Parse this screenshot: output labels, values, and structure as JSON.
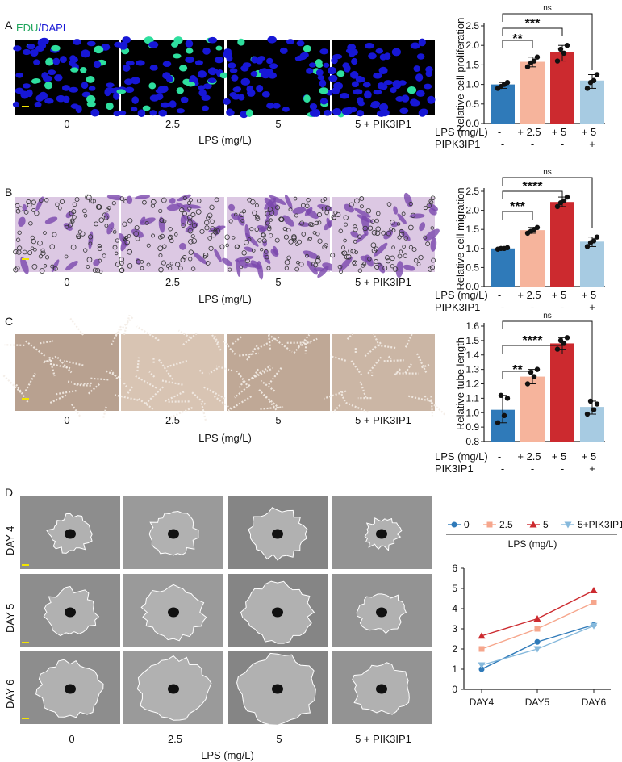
{
  "panel_labels": [
    "A",
    "B",
    "C",
    "D"
  ],
  "edu_label": {
    "edu": "EDU",
    "sep": "/",
    "dapi": "DAPI"
  },
  "conditions": [
    "0",
    "2.5",
    "5",
    "5 + PIK3IP1"
  ],
  "lps_axis": "LPS (mg/L)",
  "day_labels": [
    "DAY 4",
    "DAY 5",
    "DAY 6"
  ],
  "colors": {
    "c0": "#2f7ab9",
    "c25": "#f6b49c",
    "c5": "#cc2a2f",
    "cpik": "#a7cbe2",
    "dapi": "#1717d6",
    "edu": "#2edf9e",
    "crystal": "#7b47ad",
    "tube_bg": "#c7b3a4",
    "spheroid_bg": "#8a8a8a"
  },
  "chart_data": [
    {
      "type": "bar",
      "ylabel": "Relative cell proliferation",
      "ylim": [
        0,
        2.5
      ],
      "yticks": [
        "0.0",
        "0.5",
        "1.0",
        "1.5",
        "2.0",
        "2.5"
      ],
      "values": [
        1.0,
        1.58,
        1.83,
        1.1
      ],
      "points": [
        [
          0.9,
          1.0,
          1.05,
          0.95
        ],
        [
          1.45,
          1.6,
          1.7,
          1.55
        ],
        [
          1.6,
          1.8,
          2.0,
          1.9
        ],
        [
          0.9,
          1.1,
          1.25,
          1.05
        ]
      ],
      "sig": [
        {
          "from": 0,
          "to": 1,
          "label": "**"
        },
        {
          "from": 0,
          "to": 2,
          "label": "***"
        },
        {
          "from": 0,
          "to": 3,
          "label": "ns"
        }
      ],
      "row_lps": {
        "label": "LPS (mg/L)",
        "cells": [
          "-",
          "+ 2.5",
          "+ 5",
          "+ 5"
        ]
      },
      "row_second": {
        "label": "PIPK3IP1",
        "cells": [
          "-",
          "-",
          "-",
          "+"
        ]
      }
    },
    {
      "type": "bar",
      "ylabel": "Relative cell migration",
      "ylim": [
        0,
        2.5
      ],
      "yticks": [
        "0.0",
        "0.5",
        "1.0",
        "1.5",
        "2.0",
        "2.5"
      ],
      "values": [
        1.0,
        1.48,
        2.22,
        1.18
      ],
      "points": [
        [
          0.98,
          1.0,
          1.02,
          1.0
        ],
        [
          1.4,
          1.5,
          1.55,
          1.45
        ],
        [
          2.1,
          2.25,
          2.35,
          2.2
        ],
        [
          1.05,
          1.2,
          1.3,
          1.15
        ]
      ],
      "sig": [
        {
          "from": 0,
          "to": 1,
          "label": "***"
        },
        {
          "from": 0,
          "to": 2,
          "label": "****"
        },
        {
          "from": 0,
          "to": 3,
          "label": "ns"
        }
      ],
      "row_lps": {
        "label": "LPS (mg/L)",
        "cells": [
          "-",
          "+ 2.5",
          "+ 5",
          "+ 5"
        ]
      },
      "row_second": {
        "label": "PIPK3IP1",
        "cells": [
          "-",
          "-",
          "-",
          "+"
        ]
      }
    },
    {
      "type": "bar",
      "ylabel": "Relative tube length",
      "ylim": [
        0.8,
        1.6
      ],
      "yticks": [
        "0.8",
        "0.9",
        "1.0",
        "1.1",
        "1.2",
        "1.3",
        "1.4",
        "1.5",
        "1.6"
      ],
      "values": [
        1.02,
        1.25,
        1.48,
        1.04
      ],
      "points": [
        [
          0.93,
          0.98,
          1.1,
          1.12
        ],
        [
          1.2,
          1.25,
          1.3,
          1.28
        ],
        [
          1.44,
          1.48,
          1.52,
          1.5
        ],
        [
          0.99,
          1.02,
          1.06,
          1.08
        ]
      ],
      "sig": [
        {
          "from": 0,
          "to": 1,
          "label": "**"
        },
        {
          "from": 0,
          "to": 2,
          "label": "****"
        },
        {
          "from": 0,
          "to": 3,
          "label": "ns"
        }
      ],
      "row_lps": {
        "label": "LPS (mg/L)",
        "cells": [
          "-",
          "+ 2.5",
          "+ 5",
          "+ 5"
        ]
      },
      "row_second": {
        "label": "PIK3IP1",
        "cells": [
          "-",
          "-",
          "-",
          "+"
        ]
      }
    },
    {
      "type": "line",
      "categories": [
        "DAY4",
        "DAY5",
        "DAY6"
      ],
      "ylim": [
        0,
        6
      ],
      "yticks": [
        "0",
        "1",
        "2",
        "3",
        "4",
        "5",
        "6"
      ],
      "legend_title": "LPS (mg/L)",
      "series": [
        {
          "name": "0",
          "values": [
            1.0,
            2.35,
            3.2
          ],
          "color": "#2f7ab9",
          "marker": "circle"
        },
        {
          "name": "2.5",
          "values": [
            2.0,
            3.0,
            4.3
          ],
          "color": "#f6a68c",
          "marker": "square"
        },
        {
          "name": "5",
          "values": [
            2.65,
            3.5,
            4.9
          ],
          "color": "#cc2a2f",
          "marker": "triangle"
        },
        {
          "name": "5+PIK3IP1",
          "values": [
            1.2,
            2.0,
            3.15
          ],
          "color": "#86b9dc",
          "marker": "down-triangle"
        }
      ]
    }
  ]
}
